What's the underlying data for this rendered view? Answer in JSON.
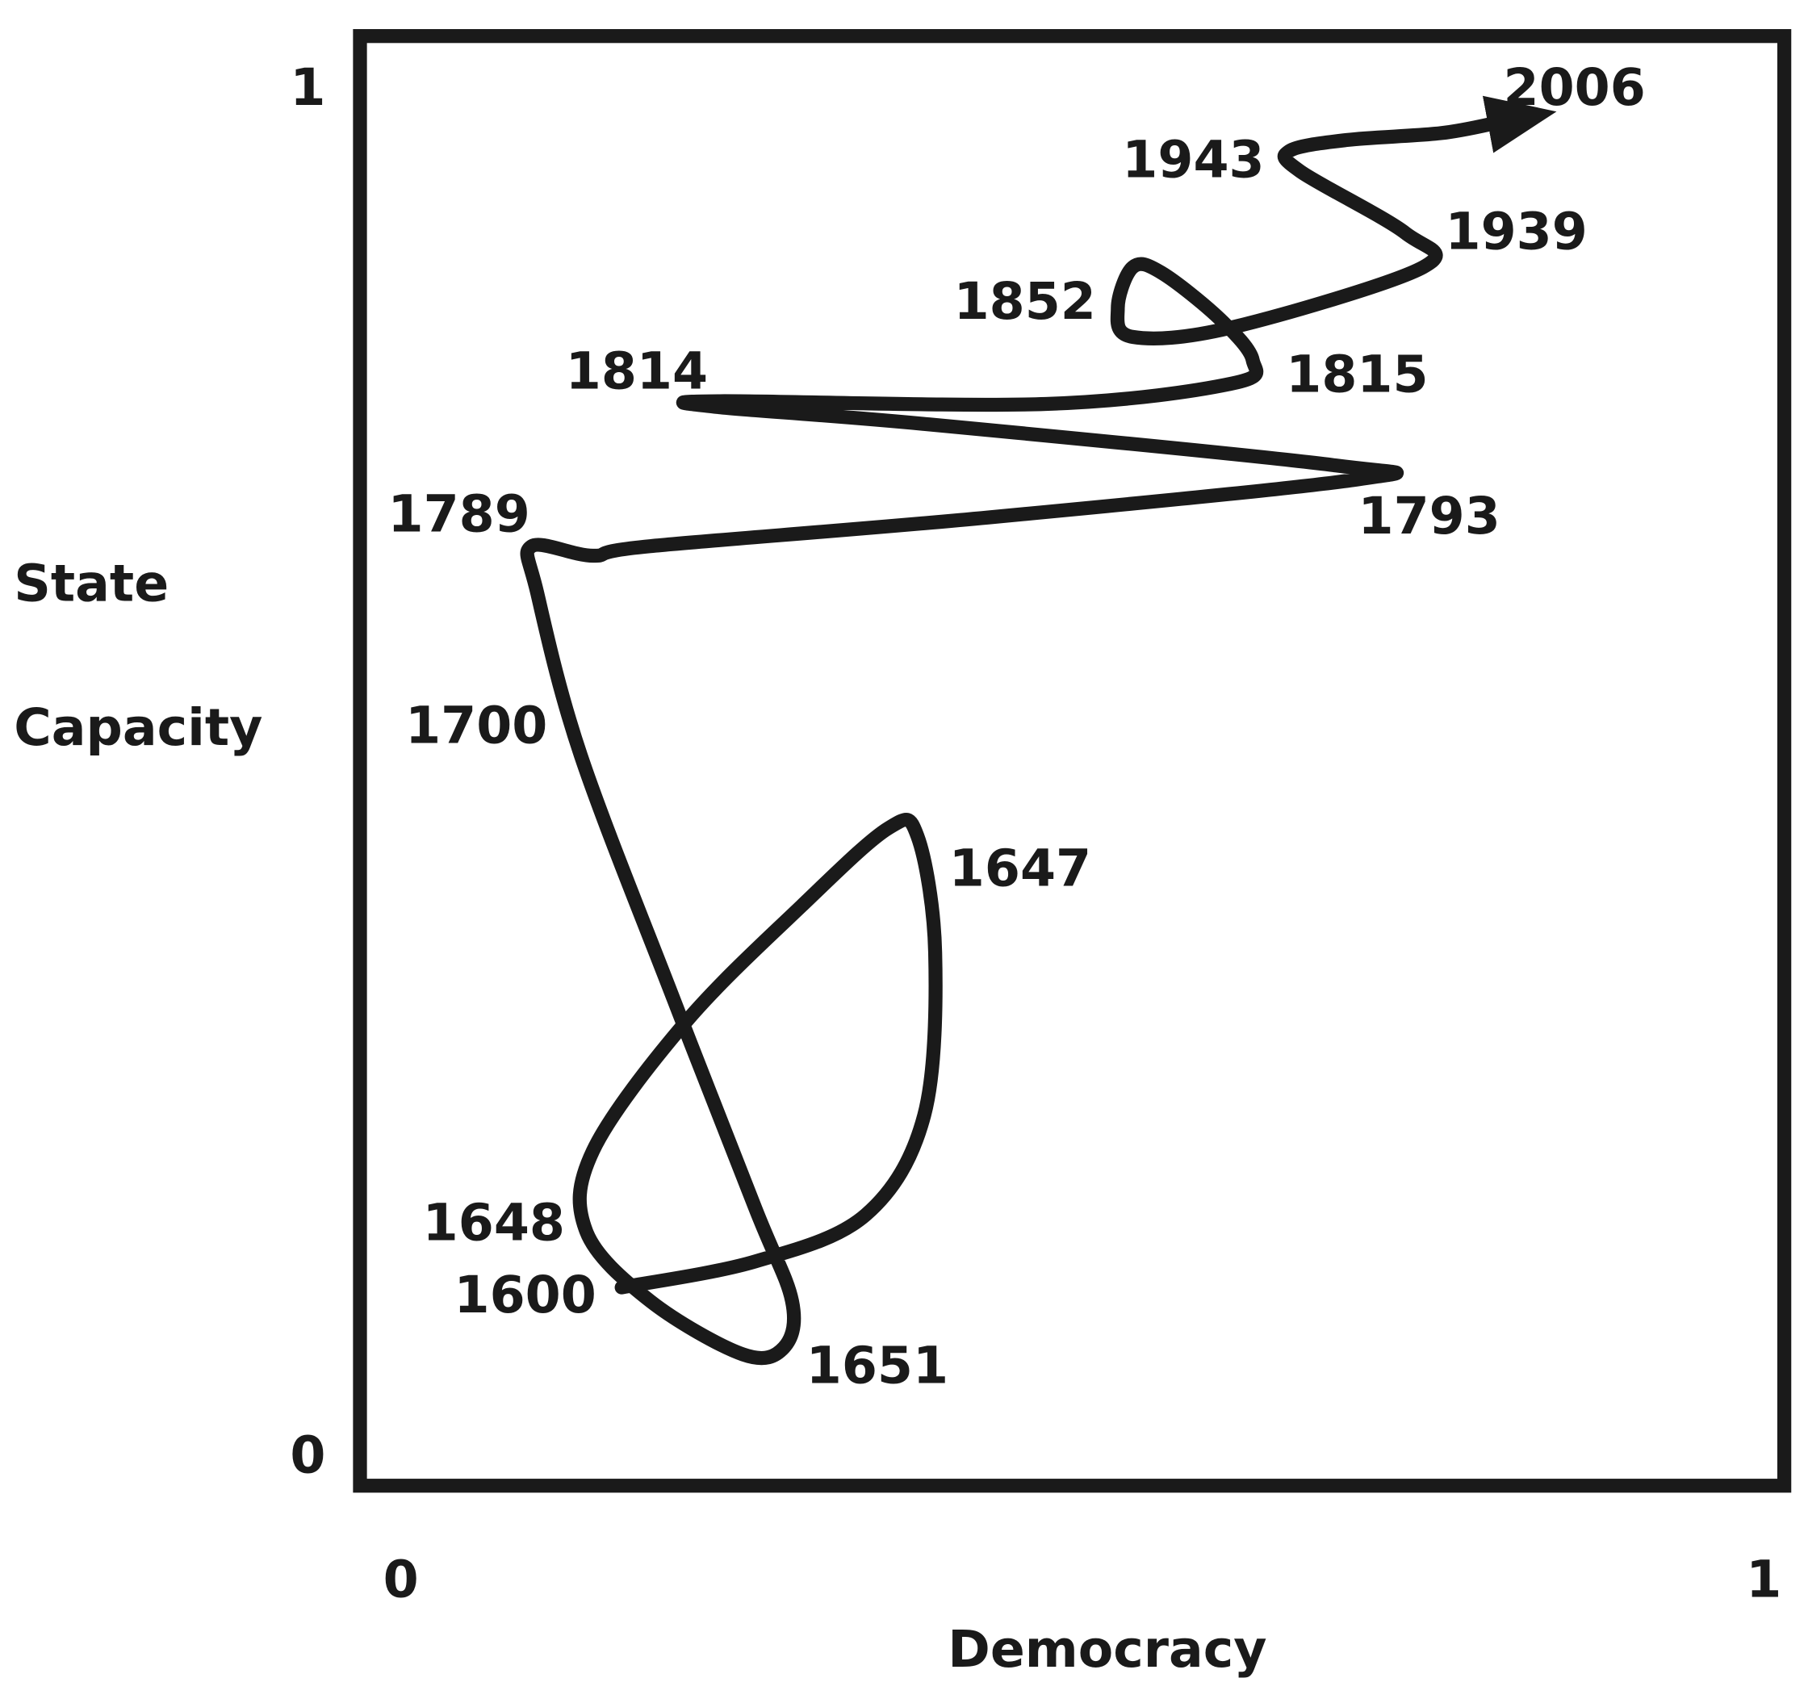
{
  "chart_data": {
    "type": "line",
    "xlabel": "Democracy",
    "ylabel": "State Capacity",
    "xlim": [
      -0.03,
      1.015
    ],
    "ylim": [
      -0.02,
      1.04
    ],
    "xticks": [
      0,
      1
    ],
    "yticks": [
      0,
      1
    ],
    "color": "#1a1a1a",
    "x": [
      0.162,
      0.26,
      0.341,
      0.384,
      0.392,
      0.379,
      0.358,
      0.294,
      0.209,
      0.141,
      0.136,
      0.183,
      0.251,
      0.281,
      0.287,
      0.26,
      0.2,
      0.132,
      0.1,
      0.096,
      0.141,
      0.183,
      0.431,
      0.703,
      0.686,
      0.388,
      0.23,
      0.234,
      0.473,
      0.61,
      0.625,
      0.601,
      0.558,
      0.537,
      0.526,
      0.537,
      0.61,
      0.75,
      0.737,
      0.66,
      0.652,
      0.694,
      0.763,
      0.806
    ],
    "values": [
      0.125,
      0.144,
      0.178,
      0.251,
      0.37,
      0.455,
      0.461,
      0.404,
      0.319,
      0.225,
      0.166,
      0.115,
      0.076,
      0.081,
      0.115,
      0.183,
      0.336,
      0.514,
      0.633,
      0.667,
      0.66,
      0.667,
      0.688,
      0.716,
      0.726,
      0.756,
      0.769,
      0.773,
      0.771,
      0.786,
      0.803,
      0.833,
      0.867,
      0.871,
      0.841,
      0.82,
      0.827,
      0.871,
      0.896,
      0.941,
      0.956,
      0.964,
      0.969,
      0.977
    ],
    "annotations": [
      "2006",
      "1943",
      "1939",
      "1852",
      "1814",
      "1815",
      "1789",
      "1793",
      "1700",
      "1647",
      "1648",
      "1600",
      "1651"
    ]
  }
}
